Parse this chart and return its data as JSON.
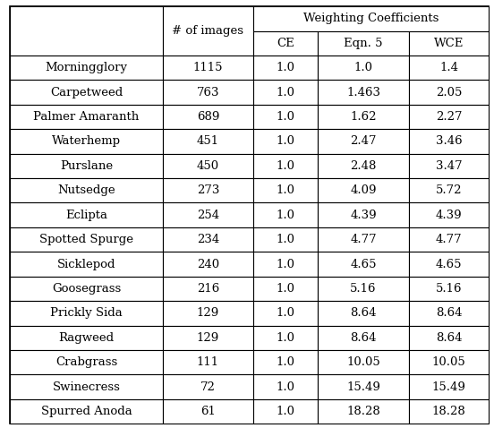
{
  "species": [
    "Morningglory",
    "Carpetweed",
    "Palmer Amaranth",
    "Waterhemp",
    "Purslane",
    "Nutsedge",
    "Eclipta",
    "Spotted Spurge",
    "Sicklepod",
    "Goosegrass",
    "Prickly Sida",
    "Ragweed",
    "Crabgrass",
    "Swinecress",
    "Spurred Anoda"
  ],
  "num_images": [
    "1115",
    "763",
    "689",
    "451",
    "450",
    "273",
    "254",
    "234",
    "240",
    "216",
    "129",
    "129",
    "111",
    "72",
    "61"
  ],
  "CE": [
    "1.0",
    "1.0",
    "1.0",
    "1.0",
    "1.0",
    "1.0",
    "1.0",
    "1.0",
    "1.0",
    "1.0",
    "1.0",
    "1.0",
    "1.0",
    "1.0",
    "1.0"
  ],
  "Eqn5": [
    "1.0",
    "1.463",
    "1.62",
    "2.47",
    "2.48",
    "4.09",
    "4.39",
    "4.77",
    "4.65",
    "5.16",
    "8.64",
    "8.64",
    "10.05",
    "15.49",
    "18.28"
  ],
  "WCE": [
    "1.4",
    "2.05",
    "2.27",
    "3.46",
    "3.47",
    "5.72",
    "4.39",
    "4.77",
    "4.65",
    "5.16",
    "8.64",
    "8.64",
    "10.05",
    "15.49",
    "18.28"
  ],
  "col_header_images": "# of images",
  "super_header": "Weighting Coefficients",
  "sub_headers": [
    "CE",
    "Eqn. 5",
    "WCE"
  ],
  "fig_width": 5.52,
  "fig_height": 4.78,
  "dpi": 100,
  "font_size": 9.5
}
